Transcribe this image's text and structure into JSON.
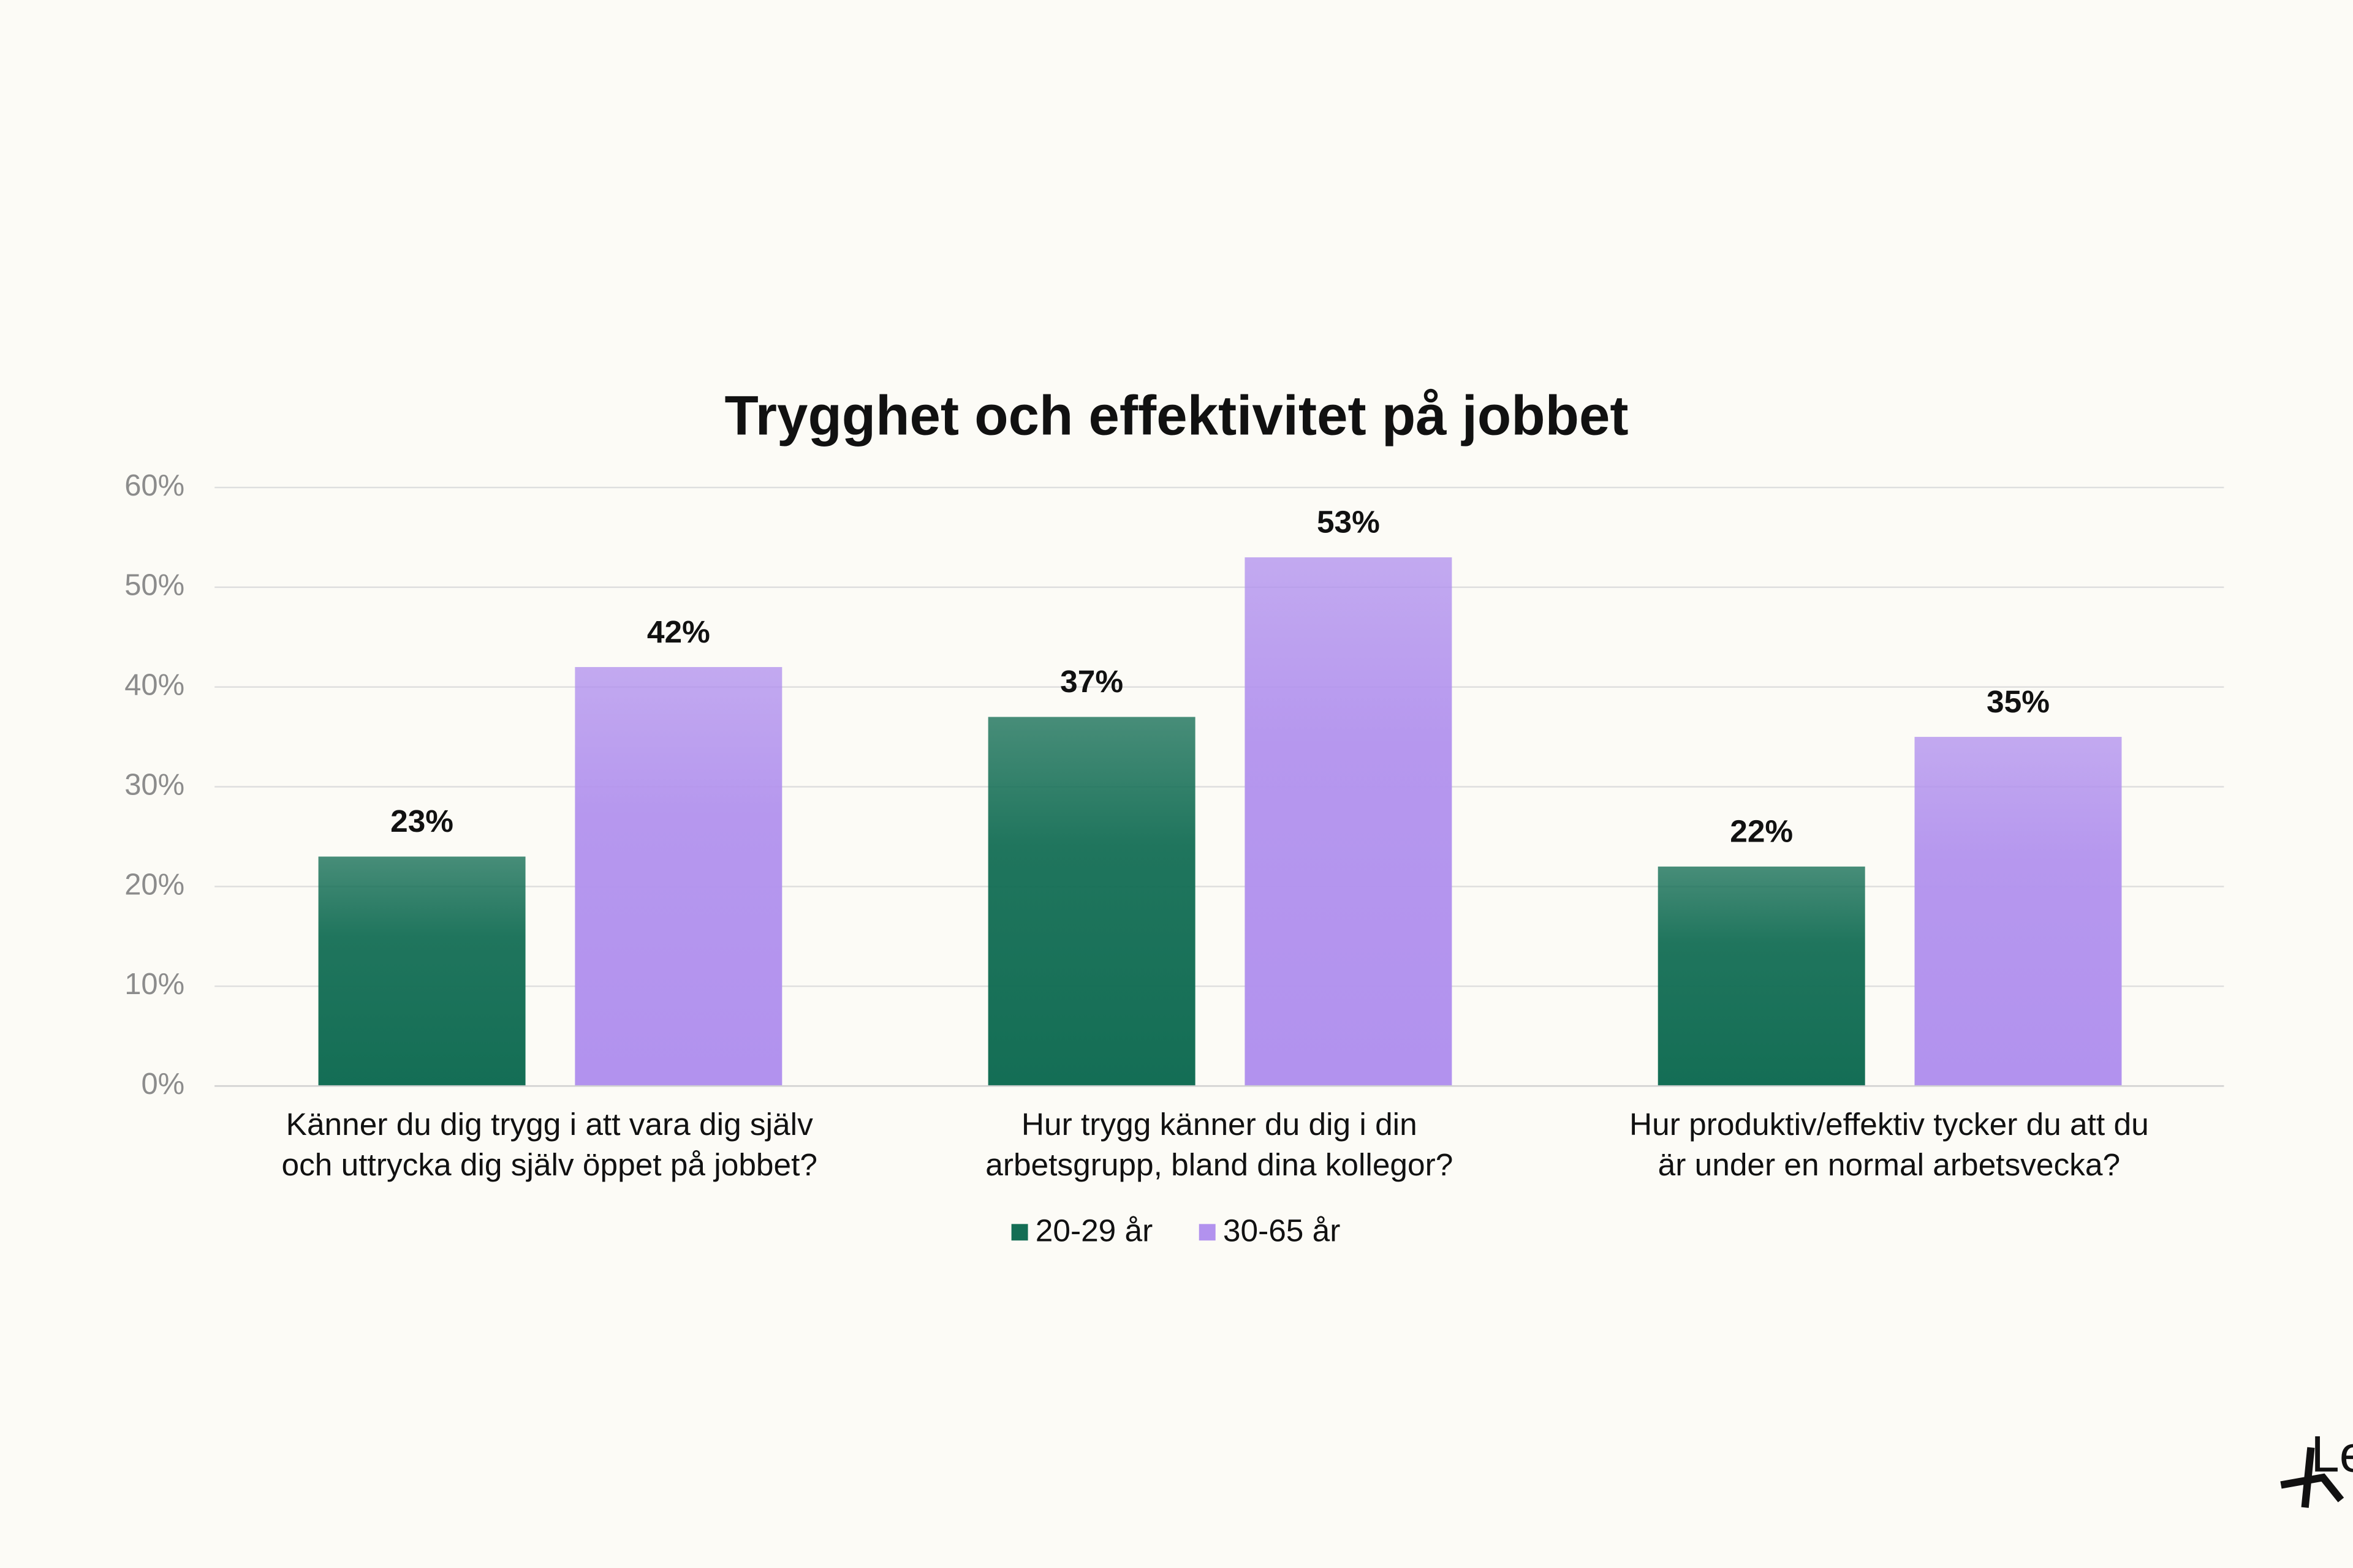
{
  "chart_data": {
    "type": "bar",
    "title": "Trygghet och effektivitet på jobbet",
    "categories": [
      [
        "Känner du dig trygg i att vara dig själv",
        "och uttrycka dig själv öppet på jobbet?"
      ],
      [
        "Hur trygg känner du dig i din",
        "arbetsgrupp, bland dina kollegor?"
      ],
      [
        "Hur produktiv/effektiv tycker du att du",
        "är under en normal arbetsvecka?"
      ]
    ],
    "series": [
      {
        "name": "20-29 år",
        "color": "#146e55",
        "values": [
          23,
          37,
          22
        ],
        "value_labels": [
          "23%",
          "37%",
          "22%"
        ]
      },
      {
        "name": "30-65 år",
        "color": "#b292ee",
        "values": [
          42,
          53,
          35
        ],
        "value_labels": [
          "42%",
          "53%",
          "35%"
        ]
      }
    ],
    "ylim": [
      0,
      60
    ],
    "yticks": [
      {
        "value": 0,
        "label": "0%"
      },
      {
        "value": 10,
        "label": "10%"
      },
      {
        "value": 20,
        "label": "20%"
      },
      {
        "value": 30,
        "label": "30%"
      },
      {
        "value": 40,
        "label": "40%"
      },
      {
        "value": 50,
        "label": "50%"
      },
      {
        "value": 60,
        "label": "60%"
      }
    ],
    "grid": true,
    "legend": "bottom"
  },
  "logo": "Le"
}
